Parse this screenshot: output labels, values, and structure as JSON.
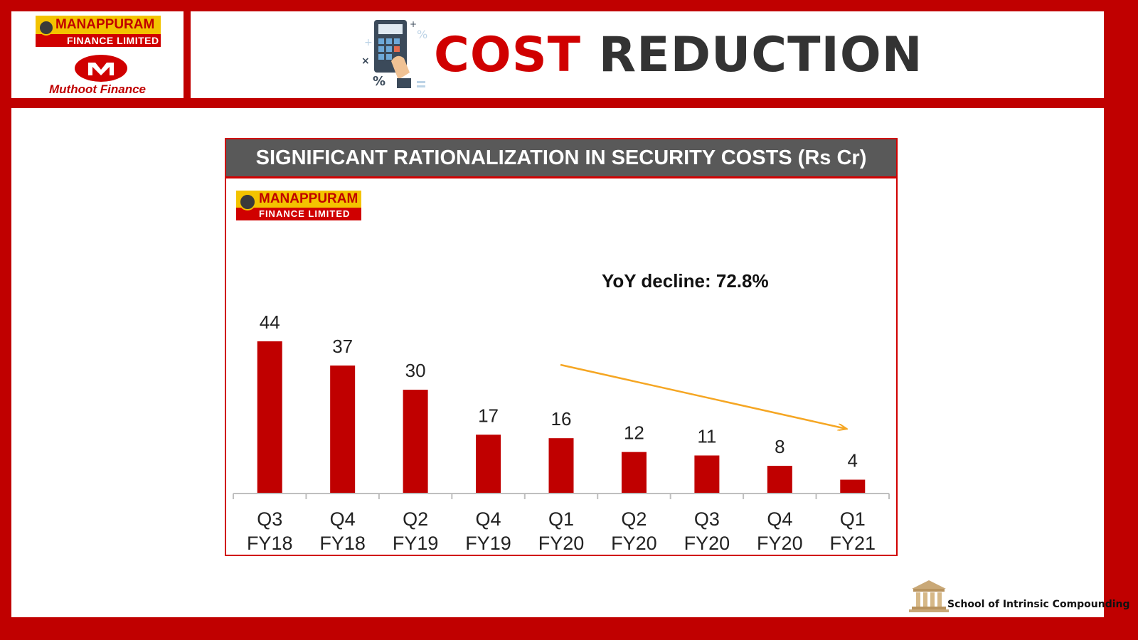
{
  "brands": {
    "manappuram_line1": "MANAPPURAM",
    "manappuram_line2": "FINANCE LIMITED",
    "muthoot": "Muthoot Finance"
  },
  "title": {
    "accent_word": "COST",
    "rest": "REDUCTION"
  },
  "chart_data": {
    "type": "bar",
    "title": "SIGNIFICANT RATIONALIZATION IN SECURITY COSTS (Rs Cr)",
    "categories": [
      [
        "Q3",
        "FY18"
      ],
      [
        "Q4",
        "FY18"
      ],
      [
        "Q2",
        "FY19"
      ],
      [
        "Q4",
        "FY19"
      ],
      [
        "Q1",
        "FY20"
      ],
      [
        "Q2",
        "FY20"
      ],
      [
        "Q3",
        "FY20"
      ],
      [
        "Q4",
        "FY20"
      ],
      [
        "Q1",
        "FY21"
      ]
    ],
    "values": [
      44,
      37,
      30,
      17,
      16,
      12,
      11,
      8,
      4
    ],
    "ylim": [
      0,
      44
    ],
    "xlabel": "",
    "ylabel": "",
    "grid": false,
    "bar_color": "#c00000",
    "annotation": {
      "text": "YoY decline: 72.8%",
      "arrow_color": "#f5a623"
    }
  },
  "footer": {
    "school_name": "School of Intrinsic Compounding"
  }
}
